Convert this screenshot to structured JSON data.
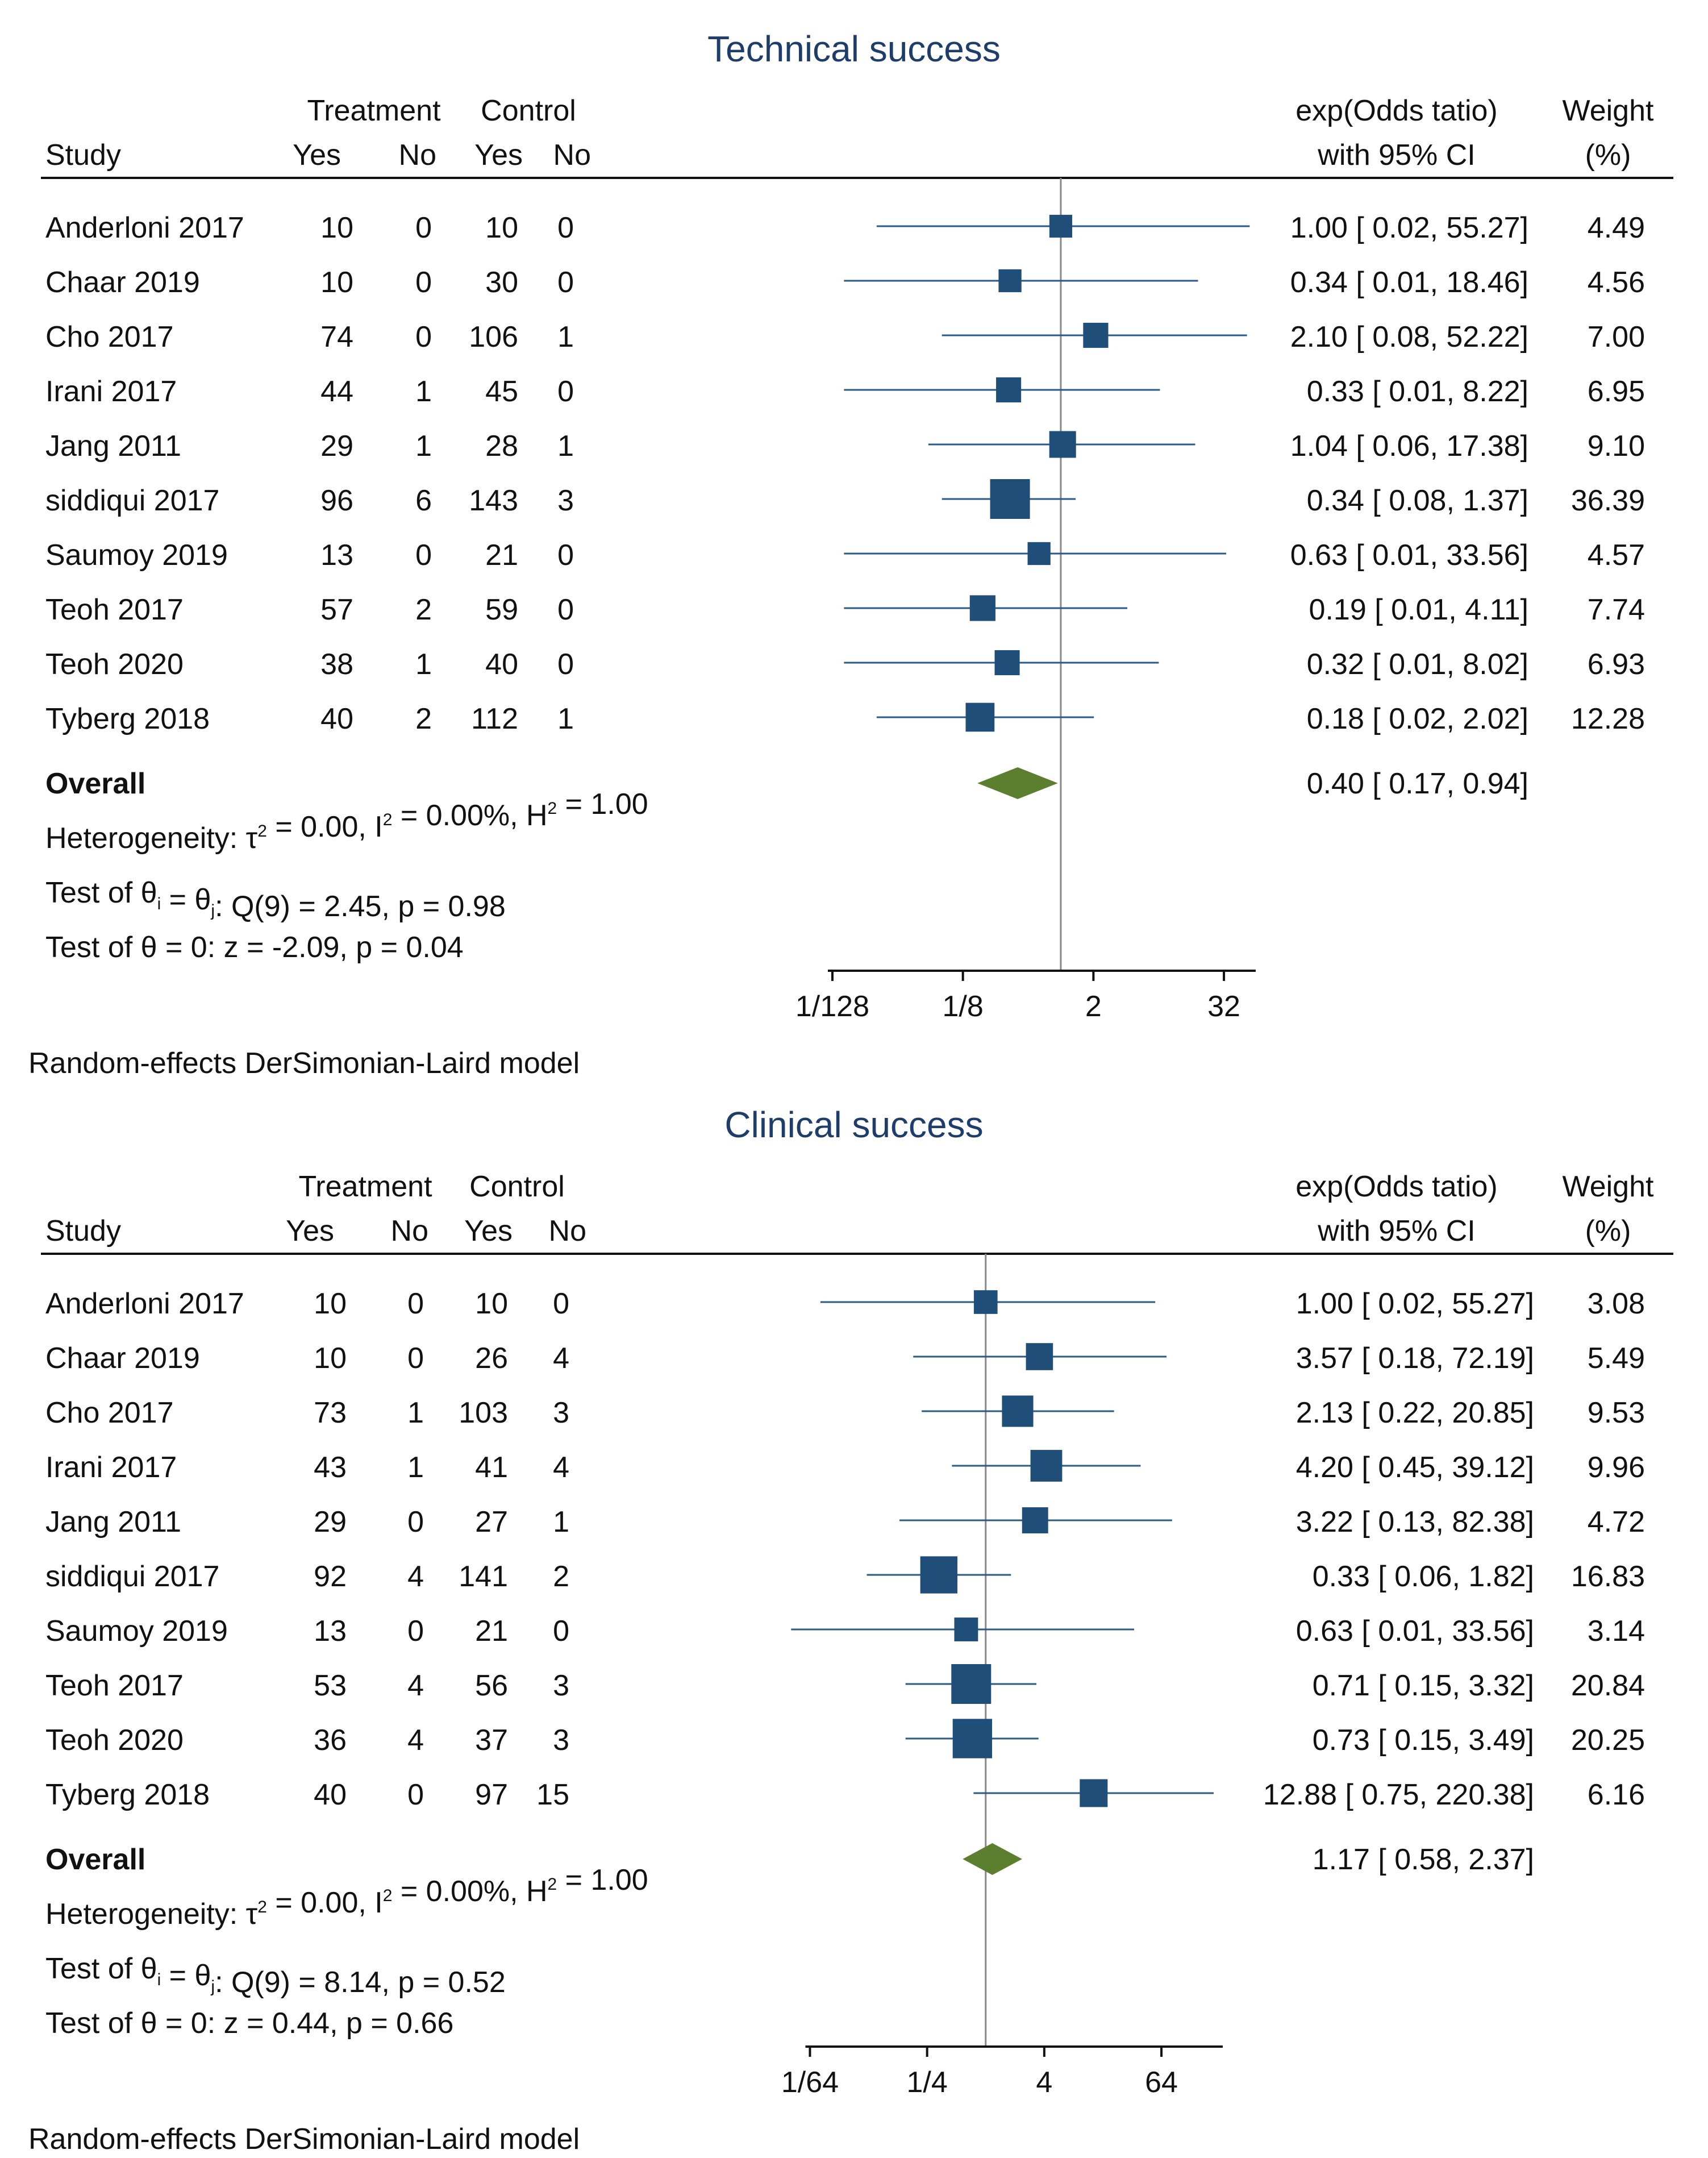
{
  "chart_data": [
    {
      "type": "forest",
      "title": "Technical success",
      "header": {
        "study": "Study",
        "treatment": "Treatment",
        "control": "Control",
        "yes": "Yes",
        "no": "No",
        "effect_line1": "exp(Odds tatio)",
        "effect_line2": "with 95% CI",
        "weight_line1": "Weight",
        "weight_line2": "(%)"
      },
      "x_scale": "log2",
      "xlim_log2": [
        -7.4,
        5.8
      ],
      "ticks": [
        {
          "label": "1/128",
          "value": 0.0078125
        },
        {
          "label": "1/8",
          "value": 0.125
        },
        {
          "label": "2",
          "value": 2
        },
        {
          "label": "32",
          "value": 32
        }
      ],
      "reference_value": 1,
      "studies": [
        {
          "study": "Anderloni 2017",
          "t_yes": "10",
          "t_no": "0",
          "c_yes": "10",
          "c_no": "0",
          "or": 1.0,
          "lo": 0.02,
          "hi": 55.27,
          "ci_text": "1.00 [ 0.02,  55.27]",
          "weight": 4.49,
          "weight_text": "4.49"
        },
        {
          "study": "Chaar 2019",
          "t_yes": "10",
          "t_no": "0",
          "c_yes": "30",
          "c_no": "0",
          "or": 0.34,
          "lo": 0.01,
          "hi": 18.46,
          "ci_text": "0.34 [ 0.01,  18.46]",
          "weight": 4.56,
          "weight_text": "4.56"
        },
        {
          "study": "Cho 2017",
          "t_yes": "74",
          "t_no": "0",
          "c_yes": "106",
          "c_no": "1",
          "or": 2.1,
          "lo": 0.08,
          "hi": 52.22,
          "ci_text": "2.10 [ 0.08,  52.22]",
          "weight": 7.0,
          "weight_text": "7.00"
        },
        {
          "study": "Irani 2017",
          "t_yes": "44",
          "t_no": "1",
          "c_yes": "45",
          "c_no": "0",
          "or": 0.33,
          "lo": 0.01,
          "hi": 8.22,
          "ci_text": "0.33 [ 0.01,    8.22]",
          "weight": 6.95,
          "weight_text": "6.95"
        },
        {
          "study": "Jang 2011",
          "t_yes": "29",
          "t_no": "1",
          "c_yes": "28",
          "c_no": "1",
          "or": 1.04,
          "lo": 0.06,
          "hi": 17.38,
          "ci_text": "1.04 [ 0.06,  17.38]",
          "weight": 9.1,
          "weight_text": "9.10"
        },
        {
          "study": "siddiqui 2017",
          "t_yes": "96",
          "t_no": "6",
          "c_yes": "143",
          "c_no": "3",
          "or": 0.34,
          "lo": 0.08,
          "hi": 1.37,
          "ci_text": "0.34 [ 0.08,    1.37]",
          "weight": 36.39,
          "weight_text": "36.39"
        },
        {
          "study": "Saumoy 2019",
          "t_yes": "13",
          "t_no": "0",
          "c_yes": "21",
          "c_no": "0",
          "or": 0.63,
          "lo": 0.01,
          "hi": 33.56,
          "ci_text": "0.63 [ 0.01,  33.56]",
          "weight": 4.57,
          "weight_text": "4.57"
        },
        {
          "study": "Teoh 2017",
          "t_yes": "57",
          "t_no": "2",
          "c_yes": "59",
          "c_no": "0",
          "or": 0.19,
          "lo": 0.01,
          "hi": 4.11,
          "ci_text": "0.19 [ 0.01,    4.11]",
          "weight": 7.74,
          "weight_text": "7.74"
        },
        {
          "study": "Teoh 2020",
          "t_yes": "38",
          "t_no": "1",
          "c_yes": "40",
          "c_no": "0",
          "or": 0.32,
          "lo": 0.01,
          "hi": 8.02,
          "ci_text": "0.32 [ 0.01,    8.02]",
          "weight": 6.93,
          "weight_text": "6.93"
        },
        {
          "study": "Tyberg 2018",
          "t_yes": "40",
          "t_no": "2",
          "c_yes": "112",
          "c_no": "1",
          "or": 0.18,
          "lo": 0.02,
          "hi": 2.02,
          "ci_text": "0.18 [ 0.02,    2.02]",
          "weight": 12.28,
          "weight_text": "12.28"
        }
      ],
      "overall": {
        "label": "Overall",
        "or": 0.4,
        "lo": 0.17,
        "hi": 0.94,
        "ci_text": "0.40 [ 0.17,    0.94]"
      },
      "heterogeneity": {
        "pre": "Heterogeneity: τ",
        "sq1": "2",
        "mid": " = 0.00, I",
        "sq2": "2",
        "mid2": " = 0.00%, H",
        "sq3": "2",
        "post": " = 1.00"
      },
      "test_q": {
        "pre": "Test of θ",
        "sub1": "i",
        "mid": " = θ",
        "sub2": "j",
        "post": ": Q(9) = 2.45, p = 0.98"
      },
      "test_z": "Test of θ = 0: z = -2.09, p = 0.04",
      "model_note": "Random-effects DerSimonian-Laird model"
    },
    {
      "type": "forest",
      "title": "Clinical success",
      "header": {
        "study": "Study",
        "treatment": "Treatment",
        "control": "Control",
        "yes": "Yes",
        "no": "No",
        "effect_line1": "exp(Odds tatio)",
        "effect_line2": "with 95% CI",
        "weight_line1": "Weight",
        "weight_line2": "(%)"
      },
      "x_scale": "log2",
      "xlim_log2": [
        -6.3,
        7.9
      ],
      "ticks": [
        {
          "label": "1/64",
          "value": 0.015625
        },
        {
          "label": "1/4",
          "value": 0.25
        },
        {
          "label": "4",
          "value": 4
        },
        {
          "label": "64",
          "value": 64
        }
      ],
      "reference_value": 1,
      "studies": [
        {
          "study": "Anderloni 2017",
          "t_yes": "10",
          "t_no": "0",
          "c_yes": "10",
          "c_no": "0",
          "or": 1.0,
          "lo": 0.02,
          "hi": 55.27,
          "ci_text": "1.00 [ 0.02,    55.27]",
          "weight": 3.08,
          "weight_text": "3.08"
        },
        {
          "study": "Chaar 2019",
          "t_yes": "10",
          "t_no": "0",
          "c_yes": "26",
          "c_no": "4",
          "or": 3.57,
          "lo": 0.18,
          "hi": 72.19,
          "ci_text": "3.57 [ 0.18,    72.19]",
          "weight": 5.49,
          "weight_text": "5.49"
        },
        {
          "study": "Cho 2017",
          "t_yes": "73",
          "t_no": "1",
          "c_yes": "103",
          "c_no": "3",
          "or": 2.13,
          "lo": 0.22,
          "hi": 20.85,
          "ci_text": "2.13 [ 0.22,    20.85]",
          "weight": 9.53,
          "weight_text": "9.53"
        },
        {
          "study": "Irani 2017",
          "t_yes": "43",
          "t_no": "1",
          "c_yes": "41",
          "c_no": "4",
          "or": 4.2,
          "lo": 0.45,
          "hi": 39.12,
          "ci_text": "4.20 [ 0.45,    39.12]",
          "weight": 9.96,
          "weight_text": "9.96"
        },
        {
          "study": "Jang 2011",
          "t_yes": "29",
          "t_no": "0",
          "c_yes": "27",
          "c_no": "1",
          "or": 3.22,
          "lo": 0.13,
          "hi": 82.38,
          "ci_text": "3.22 [ 0.13,    82.38]",
          "weight": 4.72,
          "weight_text": "4.72"
        },
        {
          "study": "siddiqui 2017",
          "t_yes": "92",
          "t_no": "4",
          "c_yes": "141",
          "c_no": "2",
          "or": 0.33,
          "lo": 0.06,
          "hi": 1.82,
          "ci_text": "0.33 [ 0.06,      1.82]",
          "weight": 16.83,
          "weight_text": "16.83"
        },
        {
          "study": "Saumoy 2019",
          "t_yes": "13",
          "t_no": "0",
          "c_yes": "21",
          "c_no": "0",
          "or": 0.63,
          "lo": 0.01,
          "hi": 33.56,
          "ci_text": "0.63 [ 0.01,    33.56]",
          "weight": 3.14,
          "weight_text": "3.14"
        },
        {
          "study": "Teoh 2017",
          "t_yes": "53",
          "t_no": "4",
          "c_yes": "56",
          "c_no": "3",
          "or": 0.71,
          "lo": 0.15,
          "hi": 3.32,
          "ci_text": "0.71 [ 0.15,      3.32]",
          "weight": 20.84,
          "weight_text": "20.84"
        },
        {
          "study": "Teoh 2020",
          "t_yes": "36",
          "t_no": "4",
          "c_yes": "37",
          "c_no": "3",
          "or": 0.73,
          "lo": 0.15,
          "hi": 3.49,
          "ci_text": "0.73 [ 0.15,      3.49]",
          "weight": 20.25,
          "weight_text": "20.25"
        },
        {
          "study": "Tyberg 2018",
          "t_yes": "40",
          "t_no": "0",
          "c_yes": "97",
          "c_no": "15",
          "or": 12.88,
          "lo": 0.75,
          "hi": 220.38,
          "ci_text": "12.88 [ 0.75,  220.38]",
          "weight": 6.16,
          "weight_text": "6.16"
        }
      ],
      "overall": {
        "label": "Overall",
        "or": 1.17,
        "lo": 0.58,
        "hi": 2.37,
        "ci_text": "1.17 [ 0.58,      2.37]"
      },
      "heterogeneity": {
        "pre": "Heterogeneity: τ",
        "sq1": "2",
        "mid": " = 0.00, I",
        "sq2": "2",
        "mid2": " = 0.00%, H",
        "sq3": "2",
        "post": " = 1.00"
      },
      "test_q": {
        "pre": "Test of θ",
        "sub1": "i",
        "mid": " = θ",
        "sub2": "j",
        "post": ": Q(9) = 8.14, p = 0.52"
      },
      "test_z": "Test of θ = 0: z = 0.44, p = 0.66",
      "model_note": "Random-effects DerSimonian-Laird model"
    }
  ],
  "colors": {
    "marker": "#1f4e79",
    "ci_line": "#2a5a86",
    "diamond": "#5b7f2e",
    "title": "#1f3d6b",
    "text": "#111111",
    "rule": "#111111",
    "ref_line": "#888888"
  }
}
